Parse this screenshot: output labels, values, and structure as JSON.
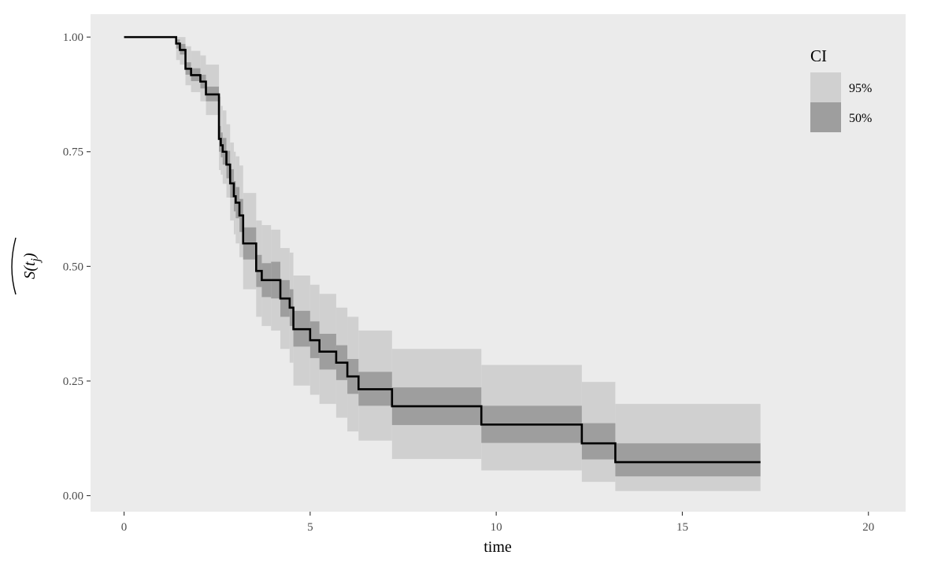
{
  "chart_data": {
    "type": "line",
    "subtype": "step-survival",
    "xlabel": "time",
    "ylabel": "S(t_j) hat",
    "xlim": [
      -0.9,
      21.0
    ],
    "ylim": [
      -0.035,
      1.05
    ],
    "x_ticks": [
      0,
      5,
      10,
      15,
      20
    ],
    "x_tick_labels": [
      "0",
      "5",
      "10",
      "15",
      "20"
    ],
    "y_ticks": [
      0,
      0.25,
      0.5,
      0.75,
      1.0
    ],
    "y_tick_labels": [
      "0.00",
      "0.25",
      "0.50",
      "0.75",
      "1.00"
    ],
    "grid": false,
    "legend": {
      "title": "CI",
      "placement": "top-right",
      "items": [
        {
          "label": "95%",
          "color": "#d0d0d0"
        },
        {
          "label": "50%",
          "color": "#9e9e9e"
        }
      ]
    },
    "colors": {
      "panel": "#ebebeb",
      "ci95": "#d0d0d0",
      "ci50": "#9e9e9e",
      "line": "#000000"
    },
    "series": [
      {
        "role": "estimate",
        "x": [
          0.0,
          1.4,
          1.5,
          1.65,
          1.8,
          2.05,
          2.2,
          2.55,
          2.6,
          2.65,
          2.75,
          2.85,
          2.95,
          3.0,
          3.1,
          3.2,
          3.55,
          3.7,
          3.95,
          4.2,
          4.45,
          4.55,
          5.0,
          5.25,
          5.7,
          6.0,
          6.3,
          7.2,
          9.6,
          12.3,
          13.2,
          17.1
        ],
        "y": [
          1.0,
          0.986,
          0.972,
          0.931,
          0.917,
          0.903,
          0.875,
          0.778,
          0.764,
          0.75,
          0.722,
          0.681,
          0.653,
          0.639,
          0.611,
          0.55,
          0.49,
          0.47,
          0.47,
          0.43,
          0.41,
          0.363,
          0.339,
          0.314,
          0.29,
          0.26,
          0.232,
          0.195,
          0.155,
          0.114,
          0.073,
          0.073
        ],
        "lo95": [
          1.0,
          0.95,
          0.94,
          0.895,
          0.88,
          0.86,
          0.83,
          0.71,
          0.7,
          0.68,
          0.65,
          0.6,
          0.57,
          0.55,
          0.52,
          0.45,
          0.39,
          0.37,
          0.36,
          0.32,
          0.29,
          0.24,
          0.22,
          0.2,
          0.17,
          0.14,
          0.12,
          0.08,
          0.055,
          0.03,
          0.01,
          0.01
        ],
        "hi95": [
          1.0,
          1.0,
          1.0,
          0.98,
          0.97,
          0.96,
          0.94,
          0.87,
          0.85,
          0.84,
          0.81,
          0.77,
          0.75,
          0.74,
          0.72,
          0.66,
          0.6,
          0.59,
          0.58,
          0.54,
          0.53,
          0.48,
          0.46,
          0.44,
          0.41,
          0.39,
          0.36,
          0.32,
          0.285,
          0.248,
          0.2,
          0.2
        ],
        "lo50": [
          1.0,
          0.975,
          0.962,
          0.918,
          0.904,
          0.888,
          0.86,
          0.75,
          0.738,
          0.722,
          0.692,
          0.65,
          0.62,
          0.605,
          0.575,
          0.515,
          0.455,
          0.433,
          0.43,
          0.39,
          0.37,
          0.325,
          0.3,
          0.275,
          0.252,
          0.222,
          0.196,
          0.154,
          0.115,
          0.079,
          0.042,
          0.042
        ],
        "hi50": [
          1.0,
          0.995,
          0.985,
          0.945,
          0.932,
          0.918,
          0.892,
          0.806,
          0.792,
          0.78,
          0.752,
          0.712,
          0.686,
          0.673,
          0.647,
          0.585,
          0.525,
          0.507,
          0.51,
          0.47,
          0.45,
          0.403,
          0.38,
          0.353,
          0.328,
          0.298,
          0.27,
          0.236,
          0.196,
          0.158,
          0.114,
          0.114
        ]
      }
    ]
  }
}
